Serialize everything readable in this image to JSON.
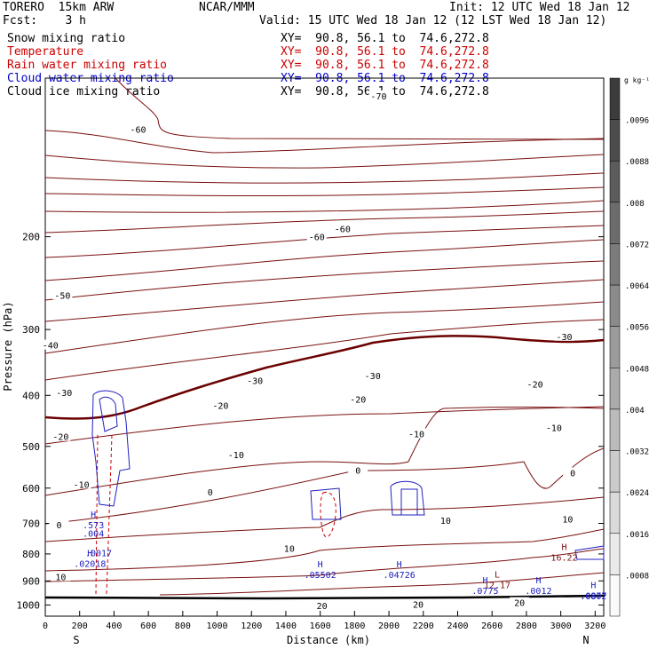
{
  "header": {
    "model": "TORERO  15km ARW",
    "forecast": "Fcst:    3 h",
    "org": "NCAR/MMM",
    "init": "Init: 12 UTC Wed 18 Jan 12",
    "valid": "Valid: 15 UTC Wed 18 Jan 12 (12 LST Wed 18 Jan 12)"
  },
  "fields": [
    {
      "name": "Snow mixing ratio",
      "range": "XY=  90.8, 56.1 to  74.6,272.8",
      "color": "#000000"
    },
    {
      "name": "Temperature",
      "range": "XY=  90.8, 56.1 to  74.6,272.8",
      "color": "#cc0000"
    },
    {
      "name": "Rain water mixing ratio",
      "range": "XY=  90.8, 56.1 to  74.6,272.8",
      "color": "#cc0000"
    },
    {
      "name": "Cloud water mixing ratio",
      "range": "XY=  90.8, 56.1 to  74.6,272.8",
      "color": "#0000cc"
    },
    {
      "name": "Cloud ice mixing ratio",
      "range": "XY=  90.8, 56.1 to  74.6,272.8",
      "color": "#000000"
    }
  ],
  "colorbar": {
    "unit": "g kg⁻¹",
    "labels": [
      ".0096",
      ".0088",
      ".008",
      ".0072",
      ".0064",
      ".0056",
      ".0048",
      ".004",
      ".0032",
      ".0024",
      ".0016",
      ".0008"
    ]
  },
  "chart_data": {
    "type": "cross-section contour",
    "xlabel": "Distance (km)",
    "ylabel": "Pressure (hPa)",
    "xlim": [
      0,
      3250
    ],
    "ylim": [
      1050,
      100
    ],
    "xticks": [
      0,
      200,
      400,
      600,
      800,
      1000,
      1200,
      1400,
      1600,
      1800,
      2000,
      2200,
      2400,
      2600,
      2800,
      3000,
      3200
    ],
    "yticks": [
      200,
      300,
      400,
      500,
      600,
      700,
      800,
      900,
      1000
    ],
    "end_labels": {
      "left": "S",
      "right": "N"
    },
    "temperature_labels": [
      {
        "x": 540,
        "p": 125,
        "t": "-60"
      },
      {
        "x": 1580,
        "p": 200,
        "t": "-60"
      },
      {
        "x": 1730,
        "p": 193,
        "t": "-60"
      },
      {
        "x": 1940,
        "p": 108,
        "t": "-70"
      },
      {
        "x": 100,
        "p": 258,
        "t": "-50"
      },
      {
        "x": 30,
        "p": 321,
        "t": "-40"
      },
      {
        "x": 3020,
        "p": 309,
        "t": "-30"
      },
      {
        "x": 1220,
        "p": 375,
        "t": "-30"
      },
      {
        "x": 1905,
        "p": 367,
        "t": "-30"
      },
      {
        "x": 110,
        "p": 395,
        "t": "-30"
      },
      {
        "x": 2850,
        "p": 381,
        "t": "-20"
      },
      {
        "x": 1020,
        "p": 418,
        "t": "-20"
      },
      {
        "x": 1820,
        "p": 407,
        "t": "-20"
      },
      {
        "x": 90,
        "p": 479,
        "t": "-20"
      },
      {
        "x": 2960,
        "p": 460,
        "t": "-10"
      },
      {
        "x": 1110,
        "p": 518,
        "t": "-10"
      },
      {
        "x": 2160,
        "p": 473,
        "t": "-10"
      },
      {
        "x": 210,
        "p": 590,
        "t": "-10"
      },
      {
        "x": 1820,
        "p": 555,
        "t": "0"
      },
      {
        "x": 3070,
        "p": 561,
        "t": "0"
      },
      {
        "x": 960,
        "p": 610,
        "t": "0"
      },
      {
        "x": 80,
        "p": 704,
        "t": "0"
      },
      {
        "x": 2330,
        "p": 690,
        "t": "10"
      },
      {
        "x": 3040,
        "p": 687,
        "t": "10"
      },
      {
        "x": 1420,
        "p": 780,
        "t": "10"
      },
      {
        "x": 90,
        "p": 883,
        "t": "10"
      },
      {
        "x": 1610,
        "p": 1003,
        "t": "20"
      },
      {
        "x": 2170,
        "p": 997,
        "t": "20"
      },
      {
        "x": 2760,
        "p": 989,
        "t": "20"
      }
    ],
    "extrema": [
      {
        "x": 280,
        "p": 690,
        "kind": "H",
        "value": ".573"
      },
      {
        "x": 280,
        "p": 730,
        "kind": "label",
        "value": ".004"
      },
      {
        "x": 310,
        "p": 796,
        "kind": "label",
        "value": ".0017"
      },
      {
        "x": 260,
        "p": 817,
        "kind": "H",
        "value": ".02018"
      },
      {
        "x": 1600,
        "p": 858,
        "kind": "H",
        "value": ".05502"
      },
      {
        "x": 2060,
        "p": 858,
        "kind": "H",
        "value": ".04726"
      },
      {
        "x": 3020,
        "p": 795,
        "kind": "H",
        "value": "16.22"
      },
      {
        "x": 2630,
        "p": 898,
        "kind": "L",
        "value": "12.17"
      },
      {
        "x": 2560,
        "p": 920,
        "kind": "H",
        "value": ".0775"
      },
      {
        "x": 2870,
        "p": 920,
        "kind": "H",
        "value": ".0012"
      },
      {
        "x": 3190,
        "p": 940,
        "kind": "H",
        "value": ".0877"
      },
      {
        "x": 3190,
        "p": 960,
        "kind": "label",
        "value": ".0802"
      }
    ]
  }
}
